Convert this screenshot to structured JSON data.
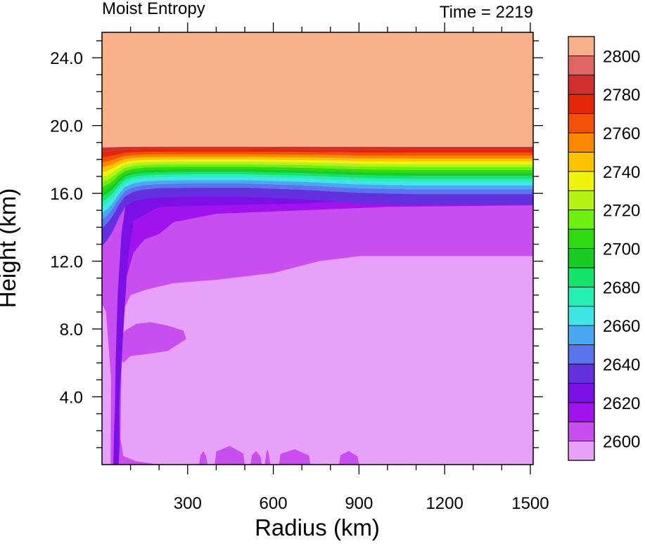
{
  "chart_data": {
    "type": "heatmap",
    "title_left": "Moist Entropy",
    "title_right": "Time = 2219",
    "xlabel": "Radius (km)",
    "ylabel": "Height (km)",
    "xlim": [
      0,
      1510
    ],
    "ylim": [
      0,
      25.5
    ],
    "xticks": [
      300,
      600,
      900,
      1200,
      1500
    ],
    "xtick_labels": [
      "300",
      "600",
      "900",
      "1200",
      "1500"
    ],
    "yticks": [
      4,
      8,
      12,
      16,
      20,
      24
    ],
    "ytick_labels": [
      "4.0",
      "8.0",
      "12.0",
      "16.0",
      "20.0",
      "24.0"
    ],
    "colorbar": {
      "levels": [
        2600,
        2610,
        2620,
        2630,
        2640,
        2650,
        2660,
        2670,
        2680,
        2690,
        2700,
        2710,
        2720,
        2730,
        2740,
        2750,
        2760,
        2770,
        2780,
        2790,
        2800
      ],
      "label_values": [
        2600,
        2620,
        2640,
        2660,
        2680,
        2700,
        2720,
        2740,
        2760,
        2780,
        2800
      ],
      "tick_labels": [
        "2600",
        "2620",
        "2640",
        "2660",
        "2680",
        "2700",
        "2720",
        "2740",
        "2760",
        "2780",
        "2800"
      ],
      "colors": [
        "#e8a1f8",
        "#c84ef0",
        "#a012ee",
        "#7a10e6",
        "#6230dc",
        "#5a74ee",
        "#4aa8f2",
        "#3ee6e6",
        "#24f0b4",
        "#14e46a",
        "#18cc22",
        "#30da10",
        "#6cf010",
        "#b4f414",
        "#eef40c",
        "#fcc400",
        "#fc8800",
        "#f25208",
        "#e22606",
        "#d03030",
        "#e06666",
        "#f8b088"
      ]
    },
    "regions": [
      {
        "level_index": 21,
        "description": "above ~18.8 km"
      },
      {
        "level_index": 0,
        "description": "lower troposphere, below ~12 km at large radius"
      },
      {
        "level_index": 1,
        "description": "~12 to 15 km, and a lobe near 7-8 km at 30-300 km radius"
      },
      {
        "level_index": 2,
        "description": "~15 to 16 km and a narrow column near the centre"
      },
      {
        "level_index": 3,
        "description": "eyewall column near radius 50 km"
      }
    ],
    "tropopause_band_km": [
      15.4,
      18.8
    ],
    "grid": false,
    "legend": "colorbar right"
  }
}
